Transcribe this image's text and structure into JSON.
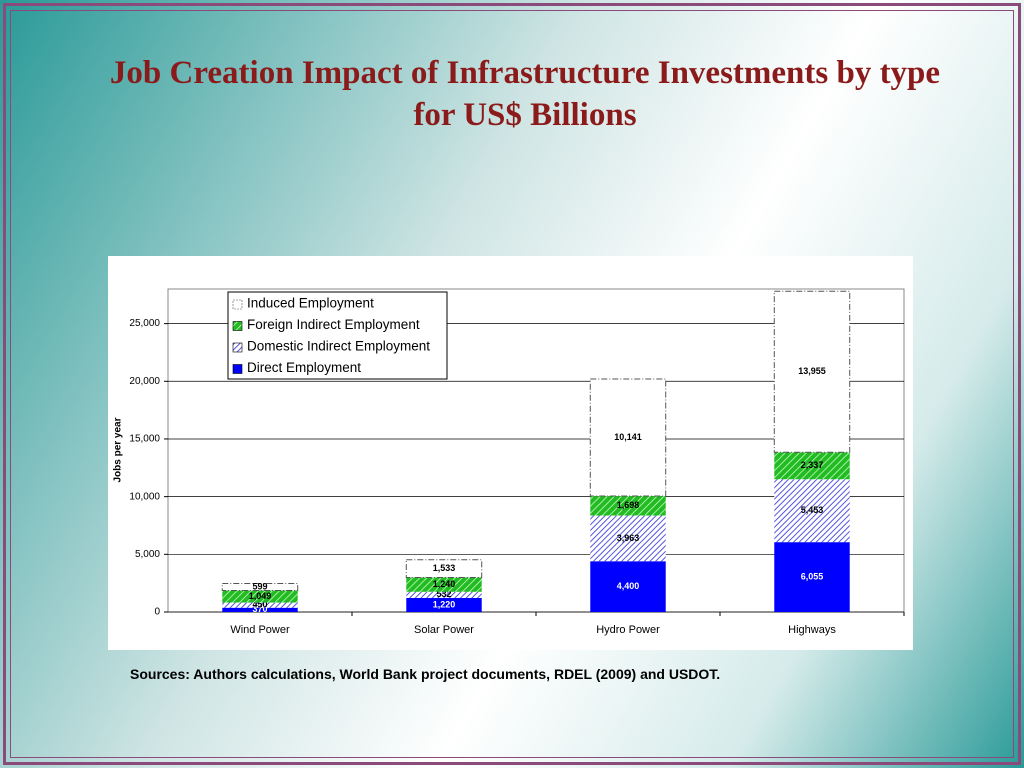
{
  "chart_data": {
    "type": "stacked_bar",
    "title": "Job Creation Impact of Infrastructure Investments by type for  US$ Billions",
    "source": "Sources:  Authors calculations, World Bank project documents, RDEL (2009) and USDOT.",
    "y_label": "Jobs per year",
    "categories": [
      "Wind Power",
      "Solar Power",
      "Hydro Power",
      "Highways"
    ],
    "series": [
      {
        "name": "Direct Employment",
        "color": "#0000ff",
        "values": [
          370,
          1220,
          4400,
          6055
        ],
        "value_labels": [
          "370",
          "1,220",
          "4,400",
          "6,055"
        ]
      },
      {
        "name": "Domestic Indirect Employment",
        "color": "#5555dd",
        "values": [
          450,
          532,
          3963,
          5453
        ],
        "value_labels": [
          "450",
          "532",
          "3,963",
          "5,453"
        ]
      },
      {
        "name": "Foreign Indirect Employment",
        "color": "#22bb22",
        "values": [
          1049,
          1240,
          1698,
          2337
        ],
        "value_labels": [
          "1,049",
          "1,240",
          "1,698",
          "2,337"
        ]
      },
      {
        "name": "Induced Employment",
        "color": "#ffffff",
        "values": [
          599,
          1533,
          10141,
          13955
        ],
        "value_labels": [
          "599",
          "1,533",
          "10,141",
          "13,955"
        ]
      }
    ],
    "ylim": [
      0,
      28000
    ],
    "yticks": [
      0,
      {
        "value": 5000,
        "label": "5,000"
      },
      {
        "value": 10000,
        "label": "10,000"
      },
      {
        "value": 15000,
        "label": "15,000"
      },
      {
        "value": 20000,
        "label": "20,000"
      },
      {
        "value": 25000,
        "label": "25,000"
      }
    ],
    "grid": true
  }
}
